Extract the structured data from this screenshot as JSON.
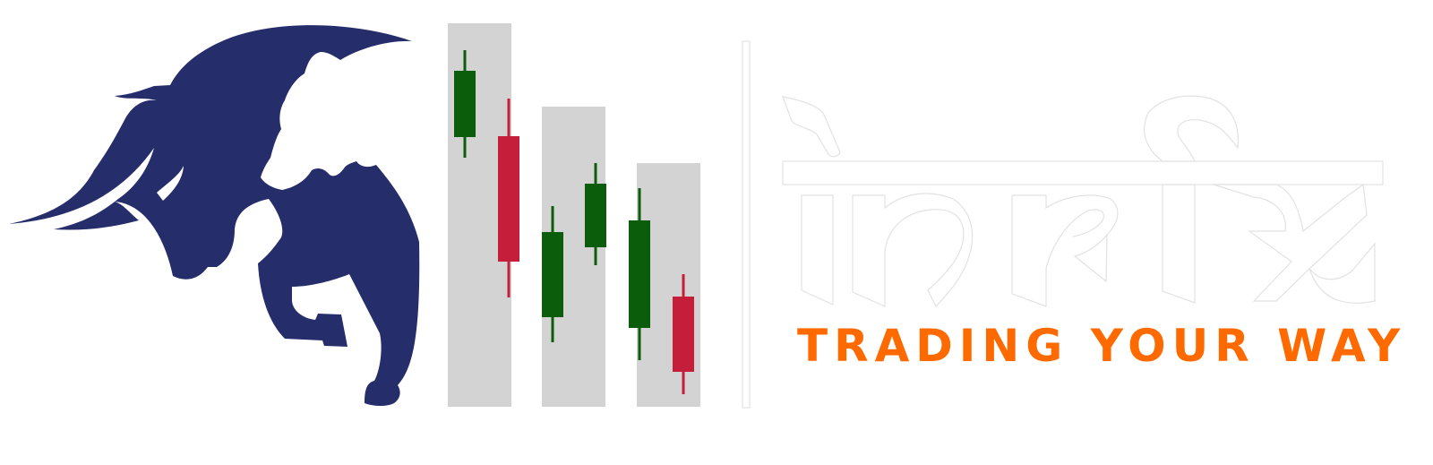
{
  "brand": {
    "name_devanagari": "टेरपैरि",
    "tagline": "TRADING YOUR WAY"
  },
  "icons": {
    "bull": "bull-head-icon",
    "bear": "bear-head-icon",
    "chart": "candlestick-chart-icon"
  },
  "colors": {
    "navy": "#262d6b",
    "green": "#0b5d0b",
    "red": "#c41e3a",
    "gray_bar": "#d3d3d3",
    "tagline_orange": "#ff6a00",
    "divider": "#dcdcdc"
  }
}
